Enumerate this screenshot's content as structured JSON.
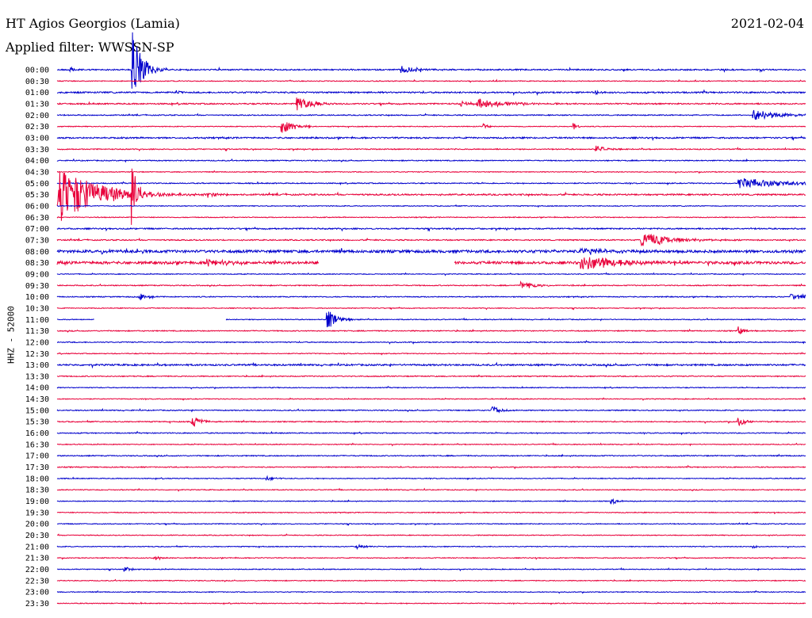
{
  "header": {
    "title": "HT Agios Georgios (Lamia)",
    "date": "2021-02-04",
    "filter": "Applied filter: WWSSN-SP"
  },
  "chart_data": {
    "type": "line",
    "title": "HT Agios Georgios (Lamia)",
    "subtitle": "Applied filter: WWSSN-SP",
    "ylabel": "HHZ - 52000",
    "colors": [
      "#0000cc",
      "#e8003a"
    ],
    "row_labels": [
      "00:00",
      "00:30",
      "01:00",
      "01:30",
      "02:00",
      "02:30",
      "03:00",
      "03:30",
      "04:00",
      "04:30",
      "05:00",
      "05:30",
      "06:00",
      "06:30",
      "07:00",
      "07:30",
      "08:00",
      "08:30",
      "09:00",
      "09:30",
      "10:00",
      "10:30",
      "11:00",
      "11:30",
      "12:00",
      "12:30",
      "13:00",
      "13:30",
      "14:00",
      "14:30",
      "15:00",
      "15:30",
      "16:00",
      "16:30",
      "17:00",
      "17:30",
      "18:00",
      "18:30",
      "19:00",
      "19:30",
      "20:00",
      "20:30",
      "21:00",
      "21:30",
      "22:00",
      "22:30",
      "23:00",
      "23:30"
    ],
    "row_noise": [
      0.8,
      0.5,
      0.9,
      0.8,
      0.6,
      0.5,
      0.9,
      0.6,
      0.6,
      0.5,
      0.6,
      0.9,
      0.5,
      0.5,
      0.8,
      0.7,
      1.6,
      1.6,
      0.5,
      0.6,
      0.6,
      0.5,
      0.5,
      0.6,
      0.6,
      0.5,
      1.0,
      0.6,
      0.5,
      0.5,
      0.6,
      0.6,
      0.6,
      0.5,
      0.6,
      0.6,
      0.5,
      0.5,
      0.5,
      0.5,
      0.5,
      0.5,
      0.5,
      0.5,
      0.5,
      0.5,
      0.5,
      0.5
    ],
    "events": [
      {
        "row": 0,
        "t": 0.018,
        "amp": 5,
        "dur": 0.004
      },
      {
        "row": 0,
        "t": 0.1,
        "amp": 55,
        "dur": 0.012
      },
      {
        "row": 0,
        "t": 0.46,
        "amp": 5,
        "dur": 0.02
      },
      {
        "row": 2,
        "t": 0.16,
        "amp": 3,
        "dur": 0.006
      },
      {
        "row": 2,
        "t": 0.72,
        "amp": 3,
        "dur": 0.004
      },
      {
        "row": 3,
        "t": 0.32,
        "amp": 10,
        "dur": 0.02
      },
      {
        "row": 3,
        "t": 0.54,
        "amp": 4,
        "dur": 0.01
      },
      {
        "row": 3,
        "t": 0.56,
        "amp": 6,
        "dur": 0.04
      },
      {
        "row": 4,
        "t": 0.93,
        "amp": 8,
        "dur": 0.03
      },
      {
        "row": 5,
        "t": 0.3,
        "amp": 10,
        "dur": 0.015
      },
      {
        "row": 5,
        "t": 0.57,
        "amp": 4,
        "dur": 0.004
      },
      {
        "row": 5,
        "t": 0.69,
        "amp": 5,
        "dur": 0.004
      },
      {
        "row": 7,
        "t": 0.72,
        "amp": 6,
        "dur": 0.01
      },
      {
        "row": 10,
        "t": 0.91,
        "amp": 7,
        "dur": 0.06
      },
      {
        "row": 11,
        "t": 0.001,
        "amp": 38,
        "dur": 0.05
      },
      {
        "row": 11,
        "t": 0.1,
        "amp": 45,
        "dur": 0.006
      },
      {
        "row": 11,
        "t": 0.2,
        "amp": 7,
        "dur": 0.01
      },
      {
        "row": 15,
        "t": 0.78,
        "amp": 10,
        "dur": 0.04
      },
      {
        "row": 16,
        "t": 0.06,
        "amp": 3,
        "dur": 0.02
      },
      {
        "row": 16,
        "t": 0.7,
        "amp": 4,
        "dur": 0.05
      },
      {
        "row": 17,
        "t": 0.2,
        "amp": 4,
        "dur": 0.03
      },
      {
        "row": 17,
        "t": 0.7,
        "amp": 10,
        "dur": 0.05
      },
      {
        "row": 19,
        "t": 0.62,
        "amp": 5,
        "dur": 0.02
      },
      {
        "row": 20,
        "t": 0.11,
        "amp": 5,
        "dur": 0.012
      },
      {
        "row": 20,
        "t": 0.98,
        "amp": 5,
        "dur": 0.02
      },
      {
        "row": 22,
        "t": 0.36,
        "amp": 14,
        "dur": 0.012
      },
      {
        "row": 23,
        "t": 0.91,
        "amp": 5,
        "dur": 0.008
      },
      {
        "row": 30,
        "t": 0.58,
        "amp": 6,
        "dur": 0.012
      },
      {
        "row": 31,
        "t": 0.18,
        "amp": 8,
        "dur": 0.012
      },
      {
        "row": 31,
        "t": 0.91,
        "amp": 6,
        "dur": 0.01
      },
      {
        "row": 36,
        "t": 0.28,
        "amp": 3,
        "dur": 0.01
      },
      {
        "row": 38,
        "t": 0.74,
        "amp": 4,
        "dur": 0.01
      },
      {
        "row": 42,
        "t": 0.4,
        "amp": 3,
        "dur": 0.012
      },
      {
        "row": 42,
        "t": 0.93,
        "amp": 3,
        "dur": 0.004
      },
      {
        "row": 43,
        "t": 0.13,
        "amp": 3,
        "dur": 0.01
      },
      {
        "row": 44,
        "t": 0.09,
        "amp": 3,
        "dur": 0.01
      }
    ],
    "gaps": [
      {
        "row": 17,
        "from": 0.35,
        "to": 0.53
      },
      {
        "row": 22,
        "from": 0.05,
        "to": 0.225
      }
    ]
  }
}
